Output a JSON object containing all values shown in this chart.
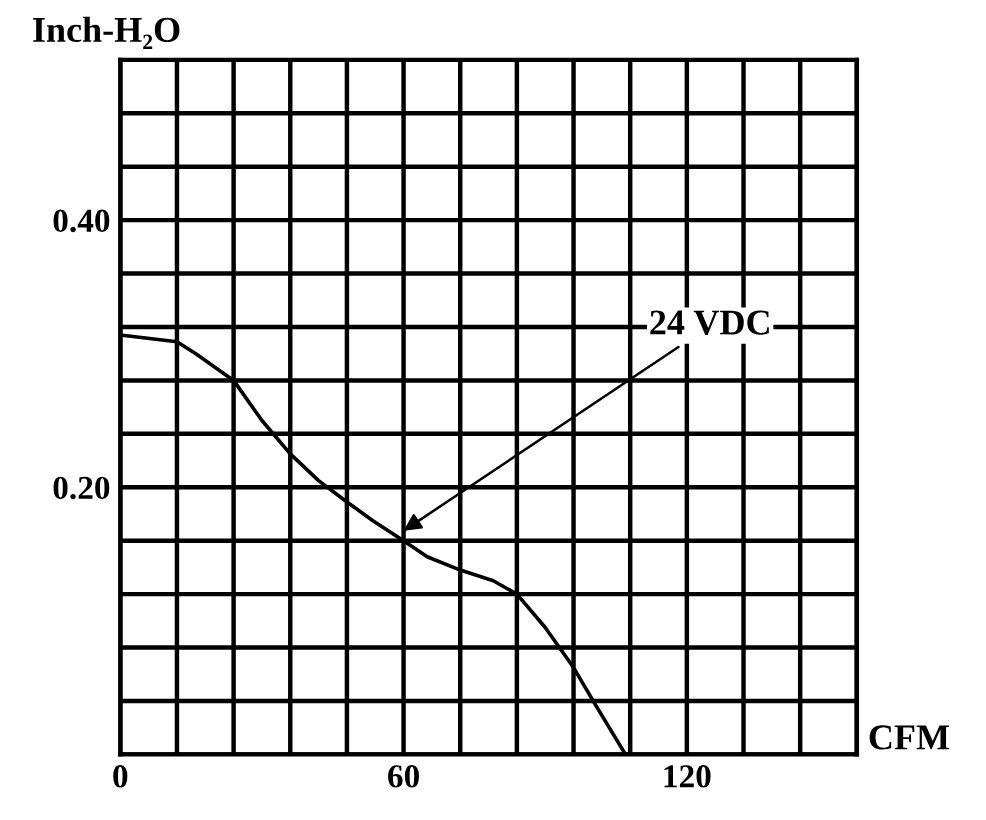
{
  "chart_data": {
    "type": "line",
    "xlabel": "CFM",
    "ylabel": "Inch-H₂O",
    "x": [
      0,
      12,
      16,
      24,
      30,
      36,
      42,
      48,
      53.5,
      60,
      65,
      72,
      79,
      84,
      90,
      96,
      101,
      107
    ],
    "series": [
      {
        "color": "#000000",
        "values": [
          0.314,
          0.309,
          0.3,
          0.28,
          0.25,
          0.225,
          0.205,
          0.189,
          0.175,
          0.16,
          0.148,
          0.138,
          0.13,
          0.12,
          0.095,
          0.065,
          0.035,
          0.0
        ]
      }
    ],
    "xlim": [
      0,
      156
    ],
    "xticks": [
      0,
      {
        "value": 12,
        "label": null
      },
      {
        "value": 24,
        "label": null
      },
      {
        "value": 36,
        "label": null
      },
      {
        "value": 48,
        "label": null
      },
      60,
      {
        "value": 72,
        "label": null
      },
      {
        "value": 84,
        "label": null
      },
      {
        "value": 96,
        "label": null
      },
      {
        "value": 108,
        "label": null
      },
      120,
      {
        "value": 132,
        "label": null
      },
      {
        "value": 144,
        "label": null
      },
      {
        "value": 156,
        "label": null
      }
    ],
    "ylim": [
      0,
      0.52
    ],
    "yticks": [
      {
        "value": 0,
        "label": null
      },
      {
        "value": 0.04,
        "label": null
      },
      {
        "value": 0.08,
        "label": null
      },
      {
        "value": 0.12,
        "label": null
      },
      {
        "value": 0.16,
        "label": null
      },
      {
        "value": 0.2,
        "label": "0.20"
      },
      {
        "value": 0.24,
        "label": null
      },
      {
        "value": 0.28,
        "label": null
      },
      {
        "value": 0.32,
        "label": null
      },
      {
        "value": 0.36,
        "label": null
      },
      {
        "value": 0.4,
        "label": "0.40"
      },
      {
        "value": 0.44,
        "label": null
      },
      {
        "value": 0.48,
        "label": null
      },
      {
        "value": 0.52,
        "label": null
      }
    ],
    "grid": true,
    "marker": "none",
    "line_style": "solid",
    "legend": false,
    "annotations": [
      {
        "text": "24 VDC",
        "x": 59,
        "y": 0.165
      }
    ]
  }
}
